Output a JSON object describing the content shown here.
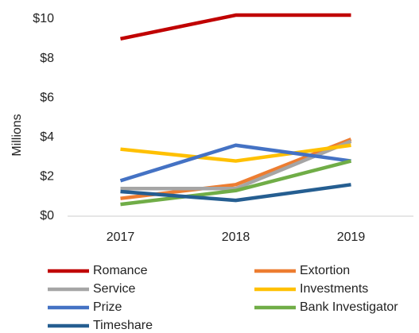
{
  "chart_data": {
    "type": "line",
    "y_label": "Millions",
    "categories": [
      "2017",
      "2018",
      "2019"
    ],
    "ylim": [
      0,
      10
    ],
    "yticks": [
      {
        "value": 0,
        "label": "$0"
      },
      {
        "value": 2,
        "label": "$2"
      },
      {
        "value": 4,
        "label": "$4"
      },
      {
        "value": 6,
        "label": "$6"
      },
      {
        "value": 8,
        "label": "$8"
      },
      {
        "value": 10,
        "label": "$10"
      }
    ],
    "grid": false,
    "series": [
      {
        "name": "Romance",
        "color": "#c00000",
        "values": [
          9.0,
          10.2,
          10.2
        ]
      },
      {
        "name": "Extortion",
        "color": "#ed7d31",
        "values": [
          0.9,
          1.6,
          3.9
        ]
      },
      {
        "name": "Service",
        "color": "#a5a5a5",
        "values": [
          1.4,
          1.4,
          3.8
        ]
      },
      {
        "name": "Investments",
        "color": "#ffc000",
        "values": [
          3.4,
          2.8,
          3.6
        ]
      },
      {
        "name": "Prize",
        "color": "#4472c4",
        "values": [
          1.8,
          3.6,
          2.8
        ]
      },
      {
        "name": "Bank Investigator",
        "color": "#70ad47",
        "values": [
          0.6,
          1.3,
          2.8
        ]
      },
      {
        "name": "Timeshare",
        "color": "#255e91",
        "values": [
          1.25,
          0.8,
          1.6
        ]
      }
    ]
  }
}
